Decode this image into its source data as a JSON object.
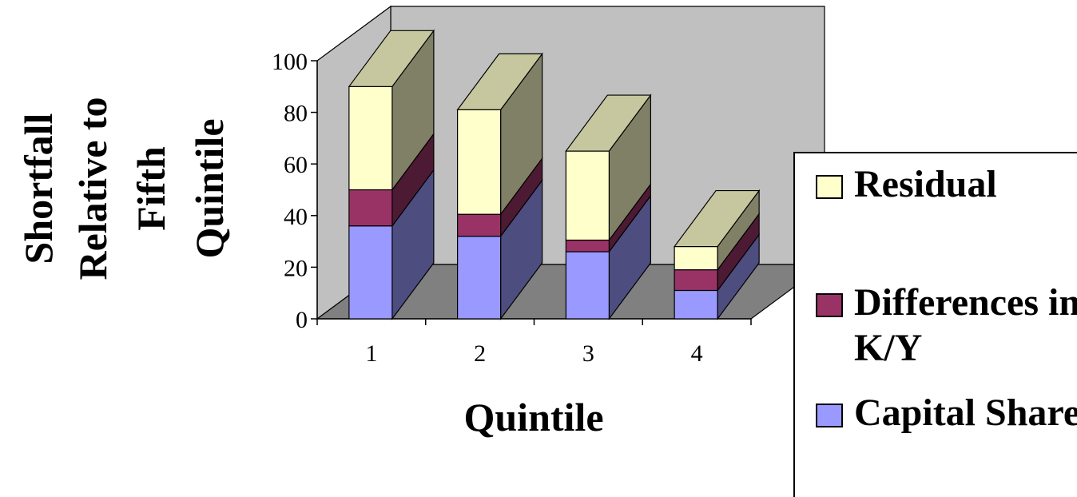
{
  "chart_data": {
    "type": "bar",
    "stacked": true,
    "three_d": true,
    "categories": [
      "1",
      "2",
      "3",
      "4"
    ],
    "series": [
      {
        "name": "Capital Share",
        "values": [
          36,
          32,
          26,
          11
        ],
        "color": "#9999ff"
      },
      {
        "name": "Differences in K/Y",
        "values": [
          14,
          8.5,
          4.5,
          8
        ],
        "color": "#993366"
      },
      {
        "name": "Residual",
        "values": [
          40,
          40.5,
          34.5,
          9
        ],
        "color": "#ffffcc"
      }
    ],
    "title": "",
    "xlabel": "Quintile",
    "ylabel": [
      "Shortfall",
      "Relative to",
      "Fifth",
      "Quintile"
    ],
    "ylim": [
      0,
      100
    ],
    "yticks": [
      "0",
      "20",
      "40",
      "60",
      "80",
      "100"
    ],
    "grid": false,
    "back_wall_color": "#c0c0c0",
    "floor_color": "#808080",
    "legend_position": "right"
  },
  "legend": {
    "items": [
      {
        "label": "Residual",
        "color": "#ffffcc"
      },
      {
        "label": "Differences in K/Y",
        "color": "#993366"
      },
      {
        "label": "Capital Share",
        "color": "#9999ff"
      }
    ]
  }
}
